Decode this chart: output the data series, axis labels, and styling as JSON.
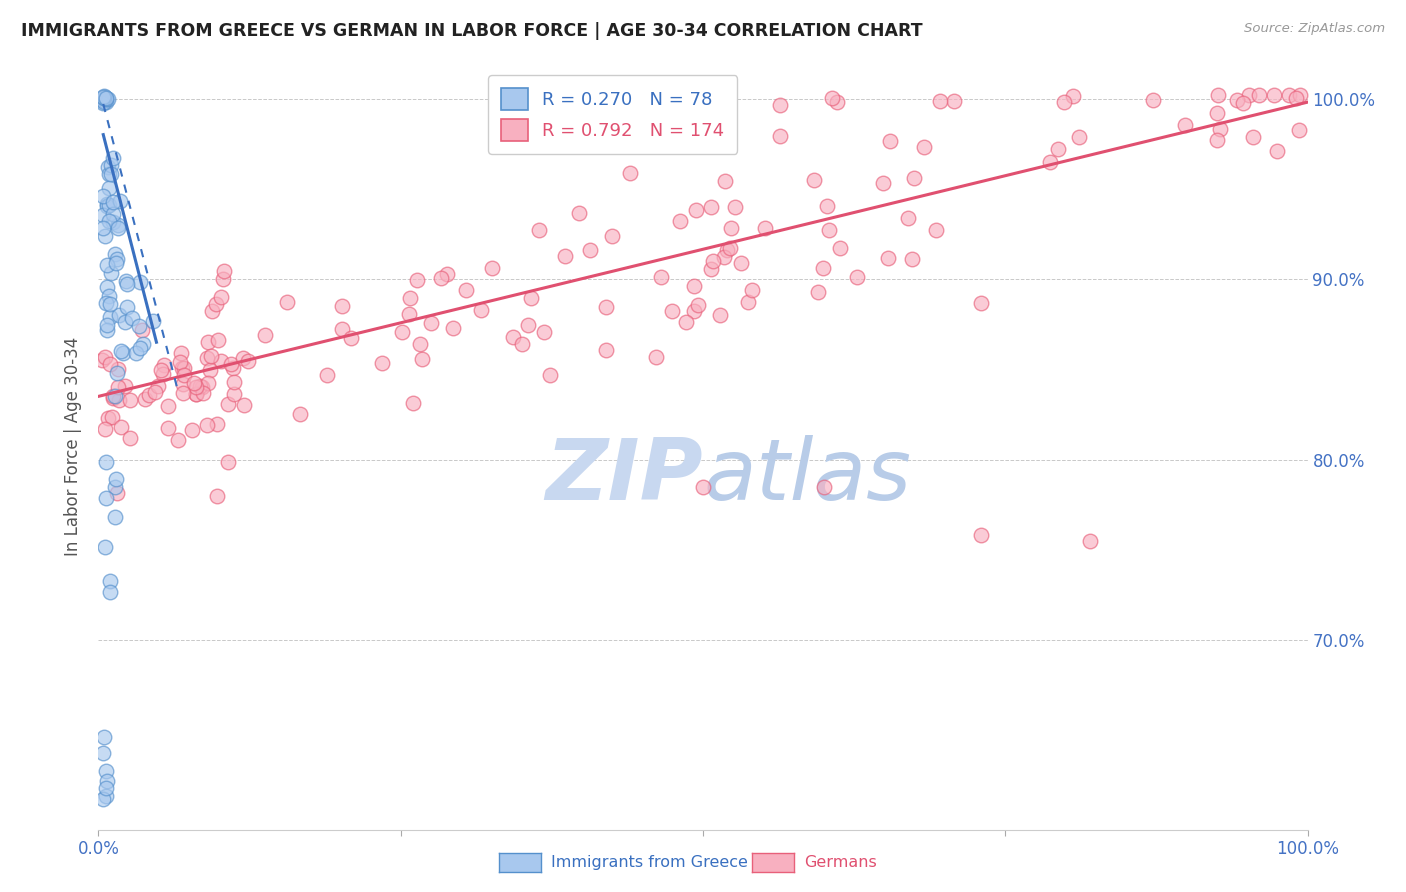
{
  "title": "IMMIGRANTS FROM GREECE VS GERMAN IN LABOR FORCE | AGE 30-34 CORRELATION CHART",
  "source": "Source: ZipAtlas.com",
  "ylabel": "In Labor Force | Age 30-34",
  "ytick_labels": [
    "70.0%",
    "80.0%",
    "90.0%",
    "100.0%"
  ],
  "ytick_values": [
    0.7,
    0.8,
    0.9,
    1.0
  ],
  "xlim": [
    0.0,
    1.0
  ],
  "ylim": [
    0.595,
    1.02
  ],
  "legend_blue_r": "0.270",
  "legend_blue_n": "78",
  "legend_pink_r": "0.792",
  "legend_pink_n": "174",
  "color_blue_fill": "#A8C8EE",
  "color_blue_edge": "#5590CC",
  "color_pink_fill": "#F8B0C0",
  "color_pink_edge": "#E8607A",
  "color_blue_line": "#3A70C0",
  "color_pink_line": "#E05070",
  "color_axis_labels": "#4472C4",
  "color_title": "#222222",
  "color_watermark": "#C8D8F0",
  "color_grid": "#BBBBBB",
  "pink_line_x0": 0.0,
  "pink_line_y0": 0.835,
  "pink_line_x1": 1.0,
  "pink_line_y1": 0.998,
  "blue_line_x0": 0.004,
  "blue_line_y0": 0.98,
  "blue_line_x1": 0.048,
  "blue_line_y1": 0.865,
  "blue_dline_x0": 0.004,
  "blue_dline_y0": 0.997,
  "blue_dline_x1": 0.065,
  "blue_dline_y1": 0.84
}
